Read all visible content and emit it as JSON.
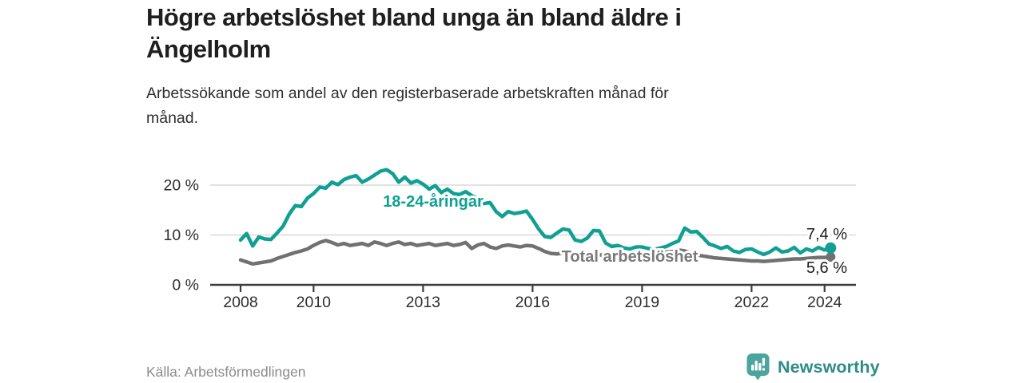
{
  "header": {
    "title_line1": "Högre arbetslöshet bland unga än bland äldre i",
    "title_line2": "Ängelholm",
    "subtitle_line1": "Arbetssökande som andel av den registerbaserade arbetskraften månad för",
    "subtitle_line2": "månad."
  },
  "footer": {
    "source": "Källa: Arbetsförmedlingen"
  },
  "brand": {
    "name": "Newsworthy",
    "icon": "bar-chart-speech-bubble-icon",
    "icon_bg_color": "#4ba49d",
    "wordmark_color": "#2e8c86"
  },
  "chart_data": {
    "type": "line",
    "unit": "%",
    "grid": "horizontal-only",
    "legend_position": "inline-labels",
    "x_axis": {
      "ticks": [
        {
          "year": 2008,
          "label": "2008"
        },
        {
          "year": 2010,
          "label": "2010"
        },
        {
          "year": 2013,
          "label": "2013"
        },
        {
          "year": 2016,
          "label": "2016"
        },
        {
          "year": 2019,
          "label": "2019"
        },
        {
          "year": 2022,
          "label": "2022"
        },
        {
          "year": 2024,
          "label": "2024"
        }
      ],
      "range": [
        2007.2,
        2024.9
      ]
    },
    "y_axis": {
      "ticks": [
        {
          "value": 0,
          "label": "0 %"
        },
        {
          "value": 10,
          "label": "10 %"
        },
        {
          "value": 20,
          "label": "20 %"
        }
      ],
      "range": [
        0,
        24
      ]
    },
    "series": [
      {
        "name": "18-24-åringar",
        "color": "#10a093",
        "end_label": "7,4 %",
        "end_value": 7.4,
        "x_start": 2008.0,
        "x_step_months": 2,
        "values": [
          9.0,
          10.3,
          7.8,
          9.6,
          9.2,
          9.1,
          10.4,
          11.8,
          14.2,
          15.9,
          15.7,
          17.4,
          18.3,
          19.6,
          19.4,
          20.6,
          20.1,
          21.1,
          21.6,
          21.9,
          20.6,
          21.2,
          22.0,
          22.8,
          23.1,
          22.3,
          20.6,
          21.6,
          20.4,
          20.9,
          20.2,
          19.2,
          19.9,
          18.5,
          19.2,
          18.3,
          18.1,
          18.7,
          17.9,
          17.3,
          16.3,
          16.5,
          14.7,
          13.7,
          14.7,
          14.3,
          14.5,
          14.8,
          13.1,
          11.2,
          9.7,
          9.5,
          10.4,
          11.2,
          11.0,
          9.0,
          8.7,
          9.4,
          10.9,
          10.8,
          8.4,
          7.7,
          7.9,
          7.4,
          7.2,
          7.6,
          7.6,
          7.3,
          7.1,
          7.4,
          7.7,
          8.3,
          8.8,
          11.4,
          10.6,
          10.7,
          9.5,
          8.2,
          7.8,
          7.3,
          7.7,
          6.8,
          6.5,
          7.1,
          7.2,
          6.6,
          6.1,
          6.6,
          7.4,
          6.6,
          6.8,
          7.5,
          6.4,
          7.2,
          6.8,
          7.5,
          7.0,
          7.4
        ]
      },
      {
        "name": "Total arbetslöshet",
        "color": "#717171",
        "end_label": "5,6 %",
        "end_value": 5.6,
        "x_start": 2008.0,
        "x_step_months": 2,
        "values": [
          5.0,
          4.6,
          4.2,
          4.4,
          4.6,
          4.8,
          5.3,
          5.7,
          6.1,
          6.5,
          6.8,
          7.2,
          7.9,
          8.5,
          8.9,
          8.5,
          8.0,
          8.3,
          7.9,
          8.1,
          8.3,
          7.9,
          8.6,
          8.3,
          7.9,
          8.3,
          8.6,
          8.1,
          8.3,
          7.9,
          8.1,
          8.3,
          7.9,
          8.1,
          8.3,
          7.9,
          8.1,
          8.5,
          7.3,
          8.0,
          8.3,
          7.6,
          7.3,
          7.8,
          8.0,
          7.8,
          7.6,
          7.9,
          7.8,
          7.3,
          6.7,
          6.3,
          6.2,
          6.4,
          6.5,
          6.3,
          6.2,
          6.3,
          6.1,
          6.0,
          6.0,
          5.9,
          6.0,
          5.8,
          5.9,
          6.0,
          6.1,
          6.2,
          6.3,
          6.4,
          6.6,
          6.7,
          7.0,
          6.8,
          6.4,
          6.0,
          5.8,
          5.6,
          5.4,
          5.3,
          5.2,
          5.1,
          5.0,
          4.9,
          4.8,
          4.8,
          4.7,
          4.8,
          4.9,
          5.0,
          5.1,
          5.2,
          5.2,
          5.3,
          5.4,
          5.5,
          5.5,
          5.6
        ]
      }
    ]
  }
}
